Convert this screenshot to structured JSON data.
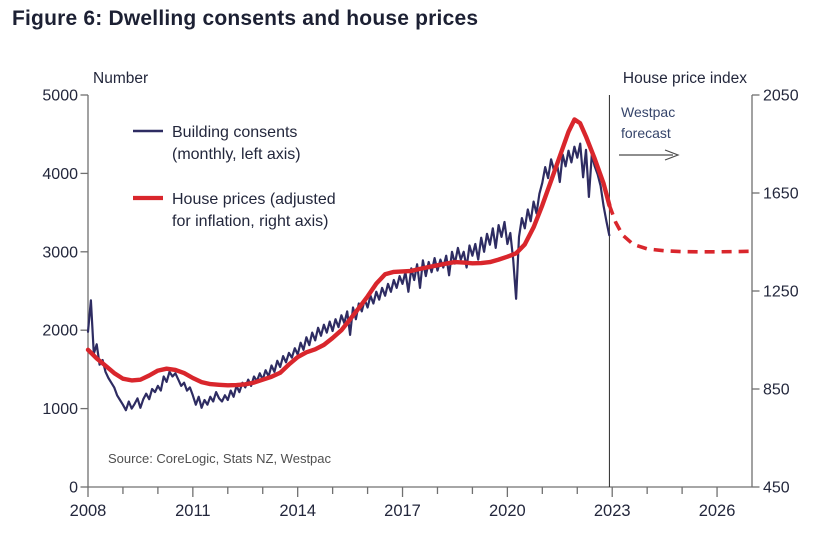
{
  "figure": {
    "title": "Figure 6: Dwelling consents and house prices"
  },
  "chart": {
    "left_axis_title": "Number",
    "right_axis_title": "House price index",
    "source": "Source: CoreLogic, Stats NZ, Westpac",
    "forecast_annotation": {
      "line1": "Westpac",
      "line2": "forecast"
    },
    "legend": [
      {
        "line1": "Building consents",
        "line2": "(monthly, left axis)",
        "color": "#2e2c62"
      },
      {
        "line1": "House prices (adjusted",
        "line2": "for inflation, right axis)",
        "color": "#d9262c"
      }
    ]
  },
  "chart_data": {
    "type": "line",
    "title": "Figure 6: Dwelling consents and house prices",
    "x_range": [
      2008,
      2027
    ],
    "x_ticks_labeled": [
      2008,
      2011,
      2014,
      2017,
      2020,
      2023,
      2026
    ],
    "x_minor_tick_interval_years": 1,
    "grid": false,
    "legend_position": "upper-left-inside",
    "left_axis": {
      "label": "Number",
      "range": [
        0,
        5000
      ],
      "ticks": [
        0,
        1000,
        2000,
        3000,
        4000,
        5000
      ]
    },
    "right_axis": {
      "label": "House price index",
      "range": [
        450,
        2050
      ],
      "ticks": [
        450,
        850,
        1250,
        1650,
        2050
      ]
    },
    "forecast_divider_year": 2022.92,
    "colors": {
      "building_consents": "#2e2c62",
      "house_prices": "#d9262c",
      "axis": "#707070",
      "divider": "#2b2b2b"
    },
    "series": [
      {
        "name": "Building consents (monthly, left axis)",
        "axis": "left",
        "style": "solid",
        "color": "#2e2c62",
        "start_year": 2008,
        "interval_months": 1,
        "values": [
          1980,
          2380,
          1700,
          1820,
          1560,
          1620,
          1470,
          1390,
          1330,
          1270,
          1170,
          1110,
          1050,
          980,
          1090,
          1000,
          1060,
          1130,
          1010,
          1120,
          1190,
          1120,
          1250,
          1210,
          1290,
          1230,
          1410,
          1340,
          1470,
          1410,
          1450,
          1370,
          1290,
          1330,
          1230,
          1270,
          1170,
          1050,
          1150,
          1010,
          1110,
          1050,
          1150,
          1090,
          1210,
          1130,
          1090,
          1170,
          1110,
          1230,
          1150,
          1290,
          1210,
          1330,
          1270,
          1370,
          1290,
          1410,
          1350,
          1450,
          1370,
          1490,
          1410,
          1550,
          1470,
          1610,
          1530,
          1670,
          1590,
          1710,
          1650,
          1770,
          1690,
          1840,
          1750,
          1910,
          1810,
          1970,
          1870,
          2030,
          1930,
          2070,
          1970,
          2110,
          1990,
          2140,
          2040,
          2190,
          2090,
          2240,
          1940,
          2290,
          2140,
          2340,
          2240,
          2390,
          2290,
          2440,
          2340,
          2490,
          2390,
          2540,
          2440,
          2590,
          2490,
          2640,
          2540,
          2690,
          2590,
          2740,
          2490,
          2790,
          2640,
          2840,
          2540,
          2890,
          2690,
          2870,
          2740,
          2920,
          2760,
          2900,
          2800,
          2950,
          2700,
          3000,
          2850,
          3050,
          2900,
          3000,
          2800,
          3080,
          2950,
          3100,
          2900,
          3180,
          3000,
          3230,
          3090,
          3300,
          3050,
          3340,
          3190,
          3380,
          3100,
          3240,
          2900,
          2400,
          3190,
          3430,
          3300,
          3540,
          3390,
          3640,
          3490,
          3740,
          3880,
          4080,
          3940,
          4180,
          4040,
          4140,
          3890,
          4240,
          4090,
          4290,
          4140,
          4340,
          4200,
          4380,
          3950,
          4300,
          3700,
          4240,
          4090,
          3990,
          3840,
          3590,
          3390,
          3210
        ]
      },
      {
        "name": "House prices (adjusted for inflation, right axis)",
        "axis": "right",
        "style": "solid",
        "color": "#d9262c",
        "points": [
          [
            2008.0,
            1010
          ],
          [
            2008.25,
            975
          ],
          [
            2008.5,
            945
          ],
          [
            2008.75,
            915
          ],
          [
            2009.0,
            892
          ],
          [
            2009.25,
            885
          ],
          [
            2009.5,
            888
          ],
          [
            2009.75,
            905
          ],
          [
            2010.0,
            925
          ],
          [
            2010.25,
            933
          ],
          [
            2010.5,
            928
          ],
          [
            2010.75,
            915
          ],
          [
            2011.0,
            895
          ],
          [
            2011.25,
            878
          ],
          [
            2011.5,
            870
          ],
          [
            2011.75,
            867
          ],
          [
            2012.0,
            865
          ],
          [
            2012.25,
            866
          ],
          [
            2012.5,
            869
          ],
          [
            2012.75,
            876
          ],
          [
            2013.0,
            888
          ],
          [
            2013.25,
            900
          ],
          [
            2013.5,
            916
          ],
          [
            2013.75,
            950
          ],
          [
            2014.0,
            980
          ],
          [
            2014.25,
            1000
          ],
          [
            2014.5,
            1012
          ],
          [
            2014.75,
            1030
          ],
          [
            2015.0,
            1058
          ],
          [
            2015.25,
            1090
          ],
          [
            2015.5,
            1135
          ],
          [
            2015.75,
            1180
          ],
          [
            2016.0,
            1228
          ],
          [
            2016.25,
            1280
          ],
          [
            2016.5,
            1318
          ],
          [
            2016.75,
            1328
          ],
          [
            2017.0,
            1330
          ],
          [
            2017.25,
            1332
          ],
          [
            2017.5,
            1340
          ],
          [
            2017.75,
            1348
          ],
          [
            2018.0,
            1355
          ],
          [
            2018.25,
            1362
          ],
          [
            2018.5,
            1368
          ],
          [
            2018.75,
            1366
          ],
          [
            2019.0,
            1363
          ],
          [
            2019.25,
            1364
          ],
          [
            2019.5,
            1368
          ],
          [
            2019.75,
            1378
          ],
          [
            2020.0,
            1390
          ],
          [
            2020.25,
            1404
          ],
          [
            2020.5,
            1440
          ],
          [
            2020.75,
            1510
          ],
          [
            2021.0,
            1600
          ],
          [
            2021.25,
            1700
          ],
          [
            2021.5,
            1800
          ],
          [
            2021.75,
            1900
          ],
          [
            2021.92,
            1950
          ],
          [
            2022.08,
            1935
          ],
          [
            2022.25,
            1880
          ],
          [
            2022.5,
            1790
          ],
          [
            2022.75,
            1690
          ],
          [
            2022.92,
            1600
          ]
        ]
      },
      {
        "name": "House prices Westpac forecast (right axis, dashed)",
        "axis": "right",
        "style": "dashed",
        "color": "#d9262c",
        "points": [
          [
            2022.92,
            1600
          ],
          [
            2023.1,
            1530
          ],
          [
            2023.3,
            1478
          ],
          [
            2023.6,
            1440
          ],
          [
            2024.0,
            1422
          ],
          [
            2024.5,
            1414
          ],
          [
            2025.0,
            1411
          ],
          [
            2025.5,
            1410
          ],
          [
            2026.0,
            1410
          ],
          [
            2026.5,
            1411
          ],
          [
            2027.0,
            1412
          ]
        ]
      }
    ]
  }
}
